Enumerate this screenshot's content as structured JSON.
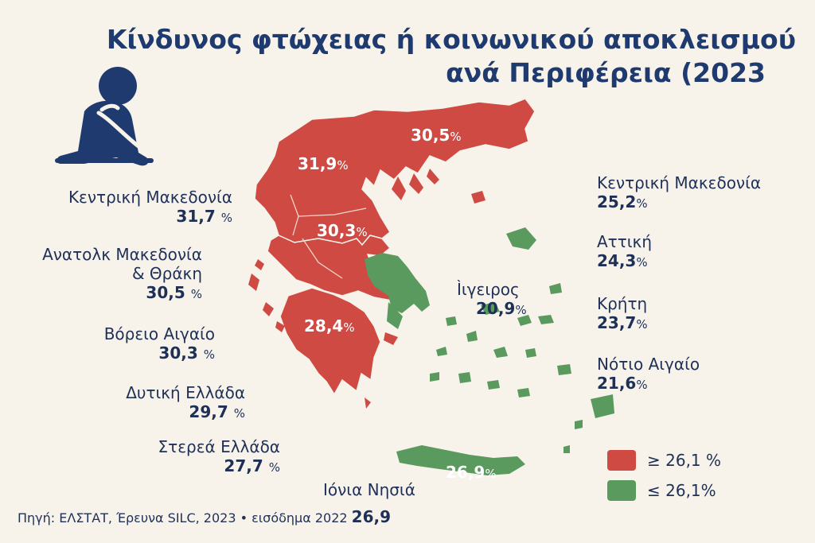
{
  "title_line1": "Κίνδυνος φτώχειας ή κοινωνικού αποκλεισμού",
  "title_line2": "ανά Περιφέρεια (2023",
  "map_labels": {
    "thrace": "30,5",
    "macedonia": "31,9",
    "thessaly": "30,3",
    "peloponnese": "28,4",
    "crete": "26,9",
    "pct": "%"
  },
  "left_labels": [
    {
      "name": "Κεντρική Μακεδονία",
      "value": "31,7"
    },
    {
      "name": "Ανατολκ Μακεδονία",
      "name2": "& Θράκη",
      "value": "30,5"
    },
    {
      "name": "Βόρειο Αιγαίο",
      "value": "30,3"
    },
    {
      "name": "Δυτική Ελλάδα",
      "value": "29,7"
    },
    {
      "name": "Στερεά Ελλάδα",
      "value": "27,7"
    }
  ],
  "right_labels": [
    {
      "name": "Κεντρική Μακεδονία",
      "value": "25,2"
    },
    {
      "name": "Αττική",
      "value": "24,3"
    },
    {
      "name": "Κρήτη",
      "value": "23,7"
    },
    {
      "name": "Νότιο Αιγαίο",
      "value": "21,6"
    }
  ],
  "center_label": {
    "name": "Ìιγειρος",
    "value": "20,9"
  },
  "ionia_label": "Ιόνια Νησιά",
  "pct": "%",
  "legend": [
    {
      "color": "#cf4a43",
      "text": "≥ 26,1",
      "pct": "%"
    },
    {
      "color": "#5a9a5e",
      "text": "≤ 26,1%"
    }
  ],
  "source_text": "Πηγή: ΕΛΣΤΑΤ, Έρευνα SILC, 2023 • εισόδημα 2022",
  "source_value": "26,9",
  "colors": {
    "high": "#cf4a43",
    "low": "#5a9a5e",
    "navy": "#1f3a6e"
  }
}
